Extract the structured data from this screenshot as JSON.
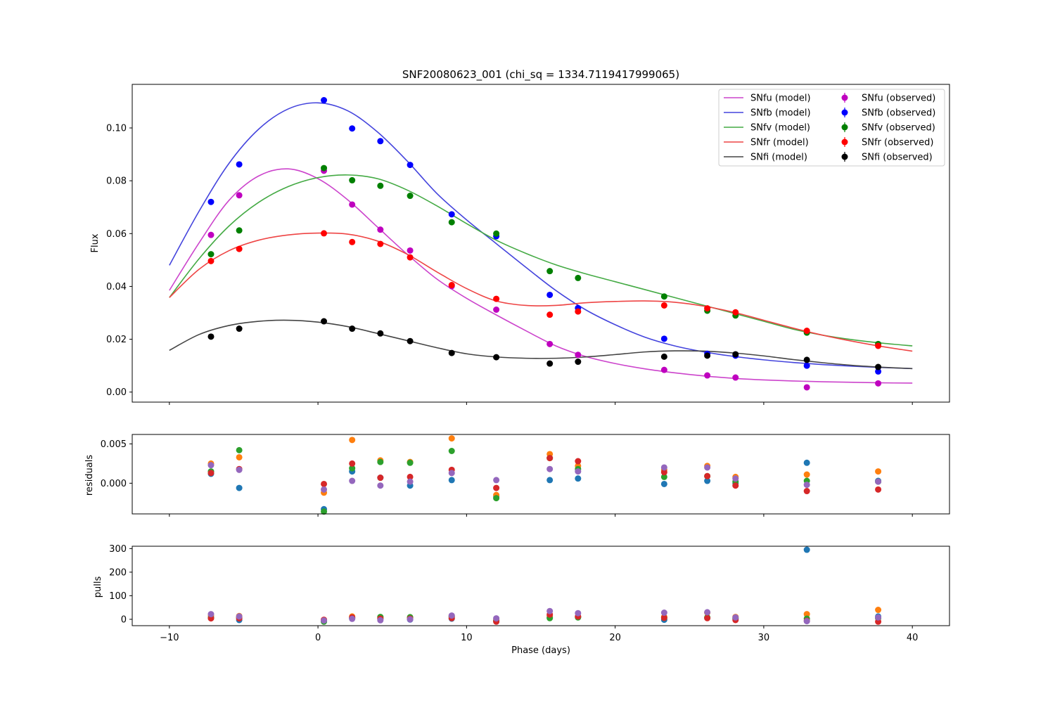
{
  "chart_data": [
    {
      "type": "line",
      "panel": "main",
      "title": "SNF20080623_001 (chi_sq = 1334.7119417999065)",
      "xlabel": "",
      "ylabel": "Flux",
      "xlim": [
        -12.5,
        42.5
      ],
      "ylim": [
        -0.0038,
        0.1165
      ],
      "x_ticks": [
        -10,
        0,
        10,
        20,
        30,
        40
      ],
      "y_ticks": [
        0.0,
        0.02,
        0.04,
        0.06,
        0.08,
        0.1
      ],
      "y_tick_labels": [
        "0.00",
        "0.02",
        "0.04",
        "0.06",
        "0.08",
        "0.10"
      ],
      "grid": false,
      "legend": {
        "placement": "top-right",
        "columns": 2,
        "entries": [
          "SNfu (model)",
          "SNfb (model)",
          "SNfv (model)",
          "SNfr (model)",
          "SNfi (model)",
          "SNfu (observed)",
          "SNfb (observed)",
          "SNfv (observed)",
          "SNfr (observed)",
          "SNfi (observed)"
        ]
      },
      "obs_phases": [
        -7.2,
        -5.3,
        0.4,
        2.3,
        4.2,
        6.2,
        9.0,
        12.0,
        15.6,
        17.5,
        23.3,
        26.2,
        28.1,
        32.9,
        37.7
      ],
      "series": [
        {
          "name": "SNfu",
          "model_label": "SNfu (model)",
          "obs_label": "SNfu (observed)",
          "model_color": "#cc44cc",
          "obs_color": "#bf00bf",
          "model_x": [
            -10,
            -8,
            -6,
            -4,
            -2,
            0,
            2,
            4,
            6,
            8,
            10,
            12,
            14,
            16,
            18,
            20,
            22,
            24,
            26,
            28,
            30,
            32,
            34,
            36,
            38,
            40
          ],
          "model_y": [
            0.0385,
            0.0565,
            0.0725,
            0.0818,
            0.0845,
            0.0808,
            0.0728,
            0.0625,
            0.0522,
            0.0428,
            0.0355,
            0.0292,
            0.0232,
            0.0175,
            0.0135,
            0.0108,
            0.0088,
            0.0073,
            0.0061,
            0.0052,
            0.0046,
            0.0042,
            0.0039,
            0.0037,
            0.0035,
            0.0034
          ],
          "obs_y": [
            0.0595,
            0.0745,
            0.0838,
            0.071,
            0.0615,
            0.0536,
            0.0401,
            0.0312,
            0.0182,
            0.0141,
            0.0084,
            0.0063,
            0.0055,
            0.0018,
            0.0033
          ]
        },
        {
          "name": "SNfb",
          "model_label": "SNfb (model)",
          "obs_label": "SNfb (observed)",
          "model_color": "#4444dd",
          "obs_color": "#0000ff",
          "model_x": [
            -10,
            -8,
            -6,
            -4,
            -2,
            0,
            2,
            4,
            6,
            8,
            10,
            12,
            14,
            16,
            18,
            20,
            22,
            24,
            26,
            28,
            30,
            32,
            34,
            36,
            38,
            40
          ],
          "model_y": [
            0.048,
            0.0685,
            0.0865,
            0.0995,
            0.1072,
            0.1095,
            0.1065,
            0.0985,
            0.0875,
            0.0752,
            0.0652,
            0.0562,
            0.0472,
            0.0385,
            0.0312,
            0.0255,
            0.0208,
            0.0175,
            0.0152,
            0.0135,
            0.0122,
            0.0112,
            0.0104,
            0.0098,
            0.0093,
            0.0089
          ],
          "obs_y": [
            0.072,
            0.0862,
            0.1105,
            0.0998,
            0.095,
            0.086,
            0.0673,
            0.059,
            0.0368,
            0.0318,
            0.0202,
            0.0145,
            0.0138,
            0.01,
            0.0078
          ]
        },
        {
          "name": "SNfv",
          "model_label": "SNfv (model)",
          "obs_label": "SNfv (observed)",
          "model_color": "#44aa44",
          "obs_color": "#008000",
          "model_x": [
            -10,
            -8,
            -6,
            -4,
            -2,
            0,
            2,
            4,
            6,
            8,
            10,
            12,
            14,
            16,
            18,
            20,
            22,
            24,
            26,
            28,
            30,
            32,
            34,
            36,
            38,
            40
          ],
          "model_y": [
            0.0358,
            0.0505,
            0.0628,
            0.0718,
            0.0778,
            0.0812,
            0.0822,
            0.0808,
            0.0765,
            0.0705,
            0.0638,
            0.0575,
            0.0525,
            0.0482,
            0.0448,
            0.0418,
            0.0388,
            0.0358,
            0.0328,
            0.0298,
            0.0268,
            0.0238,
            0.0215,
            0.0198,
            0.0185,
            0.0175
          ],
          "obs_y": [
            0.0522,
            0.0612,
            0.0848,
            0.0802,
            0.0781,
            0.0743,
            0.0643,
            0.06,
            0.0458,
            0.0432,
            0.0362,
            0.0308,
            0.029,
            0.0225,
            0.0182
          ]
        },
        {
          "name": "SNfr",
          "model_label": "SNfr (model)",
          "obs_label": "SNfr (observed)",
          "model_color": "#ee4444",
          "obs_color": "#ff0000",
          "model_x": [
            -10,
            -8,
            -6,
            -4,
            -2,
            0,
            2,
            4,
            6,
            8,
            10,
            12,
            14,
            16,
            18,
            20,
            22,
            24,
            26,
            28,
            30,
            32,
            34,
            36,
            38,
            40
          ],
          "model_y": [
            0.0358,
            0.0465,
            0.0535,
            0.0575,
            0.0595,
            0.0602,
            0.0598,
            0.0572,
            0.0522,
            0.0455,
            0.0392,
            0.0345,
            0.0328,
            0.0328,
            0.0338,
            0.0343,
            0.0345,
            0.034,
            0.0325,
            0.0302,
            0.0272,
            0.0242,
            0.0215,
            0.0192,
            0.0172,
            0.0155
          ],
          "obs_y": [
            0.0496,
            0.0542,
            0.0601,
            0.0568,
            0.0561,
            0.051,
            0.0405,
            0.0353,
            0.0293,
            0.0305,
            0.0328,
            0.0317,
            0.0302,
            0.0232,
            0.0175
          ]
        },
        {
          "name": "SNfi",
          "model_label": "SNfi (model)",
          "obs_label": "SNfi (observed)",
          "model_color": "#444444",
          "obs_color": "#000000",
          "model_x": [
            -10,
            -8,
            -6,
            -4,
            -2,
            0,
            2,
            4,
            6,
            8,
            10,
            12,
            14,
            16,
            18,
            20,
            22,
            24,
            26,
            28,
            30,
            32,
            34,
            36,
            38,
            40
          ],
          "model_y": [
            0.0158,
            0.0218,
            0.0252,
            0.0268,
            0.0272,
            0.0265,
            0.0248,
            0.0222,
            0.0195,
            0.0168,
            0.0145,
            0.0133,
            0.0128,
            0.0128,
            0.0133,
            0.0142,
            0.0152,
            0.0156,
            0.0155,
            0.0148,
            0.0137,
            0.0123,
            0.0111,
            0.0101,
            0.0094,
            0.0089
          ],
          "obs_y": [
            0.021,
            0.024,
            0.0268,
            0.024,
            0.0222,
            0.0193,
            0.0148,
            0.0132,
            0.0108,
            0.0115,
            0.0134,
            0.0138,
            0.0143,
            0.0122,
            0.0095
          ]
        }
      ]
    },
    {
      "type": "scatter",
      "panel": "residuals",
      "xlabel": "",
      "ylabel": "residuals",
      "xlim": [
        -12.5,
        42.5
      ],
      "ylim": [
        -0.0039,
        0.0062
      ],
      "y_ticks": [
        0.0,
        0.005
      ],
      "y_tick_labels": [
        "0.000",
        "0.005"
      ],
      "x": [
        -7.2,
        -5.3,
        0.4,
        2.3,
        4.2,
        6.2,
        9.0,
        12.0,
        15.6,
        17.5,
        23.3,
        26.2,
        28.1,
        32.9,
        37.7
      ],
      "series": [
        {
          "color": "#1f77b4",
          "values": [
            0.0012,
            -0.0006,
            -0.0033,
            0.0015,
            0.0007,
            -0.0003,
            0.0004,
            -0.0017,
            0.0004,
            0.0006,
            -0.0001,
            0.0003,
            0.0,
            0.0026,
            0.0003
          ]
        },
        {
          "color": "#ff7f0e",
          "values": [
            0.0025,
            0.0033,
            -0.0012,
            0.0055,
            0.0029,
            0.0027,
            0.0057,
            -0.0015,
            0.0037,
            0.0022,
            0.0017,
            0.0022,
            0.0008,
            0.0011,
            0.0015
          ]
        },
        {
          "color": "#2ca02c",
          "values": [
            0.0015,
            0.0042,
            -0.0036,
            0.0019,
            0.0027,
            0.0026,
            0.0041,
            -0.0019,
            0.0032,
            0.0018,
            0.0008,
            0.0009,
            0.0002,
            0.0003,
            0.0002
          ]
        },
        {
          "color": "#d62728",
          "values": [
            0.0013,
            0.0018,
            -0.0001,
            0.0025,
            0.0007,
            0.0008,
            0.0017,
            -0.0006,
            0.0032,
            0.0028,
            0.0014,
            0.0009,
            -0.0003,
            -0.001,
            -0.0008
          ]
        },
        {
          "color": "#9467bd",
          "values": [
            0.0023,
            0.0017,
            -0.0008,
            0.0003,
            -0.0003,
            0.0002,
            0.0013,
            0.0004,
            0.0018,
            0.0015,
            0.002,
            0.002,
            0.0006,
            -0.0002,
            0.0002
          ]
        }
      ]
    },
    {
      "type": "scatter",
      "panel": "pulls",
      "xlabel": "Phase (days)",
      "ylabel": "pulls",
      "xlim": [
        -12.5,
        42.5
      ],
      "ylim": [
        -27,
        310
      ],
      "x_ticks": [
        -10,
        0,
        10,
        20,
        30,
        40
      ],
      "y_ticks": [
        0,
        100,
        200,
        300
      ],
      "y_tick_labels": [
        "0",
        "100",
        "200",
        "300"
      ],
      "x": [
        -7.2,
        -5.3,
        0.4,
        2.3,
        4.2,
        6.2,
        9.0,
        12.0,
        15.6,
        17.5,
        23.3,
        26.2,
        28.1,
        32.9,
        37.7
      ],
      "series": [
        {
          "color": "#1f77b4",
          "values": [
            8,
            -3,
            -8,
            5,
            2,
            -1,
            3,
            -5,
            8,
            10,
            -2,
            6,
            2,
            295,
            12
          ]
        },
        {
          "color": "#ff7f0e",
          "values": [
            15,
            14,
            -4,
            12,
            7,
            8,
            13,
            -2,
            15,
            12,
            10,
            28,
            10,
            22,
            40
          ]
        },
        {
          "color": "#2ca02c",
          "values": [
            6,
            8,
            -10,
            6,
            10,
            9,
            10,
            -8,
            5,
            8,
            6,
            8,
            4,
            3,
            5
          ]
        },
        {
          "color": "#d62728",
          "values": [
            4,
            4,
            -2,
            8,
            3,
            3,
            5,
            -10,
            20,
            12,
            6,
            5,
            -3,
            -6,
            -10
          ]
        },
        {
          "color": "#9467bd",
          "values": [
            22,
            12,
            -5,
            2,
            -4,
            0,
            16,
            4,
            35,
            26,
            28,
            30,
            8,
            -8,
            8
          ]
        }
      ]
    }
  ]
}
